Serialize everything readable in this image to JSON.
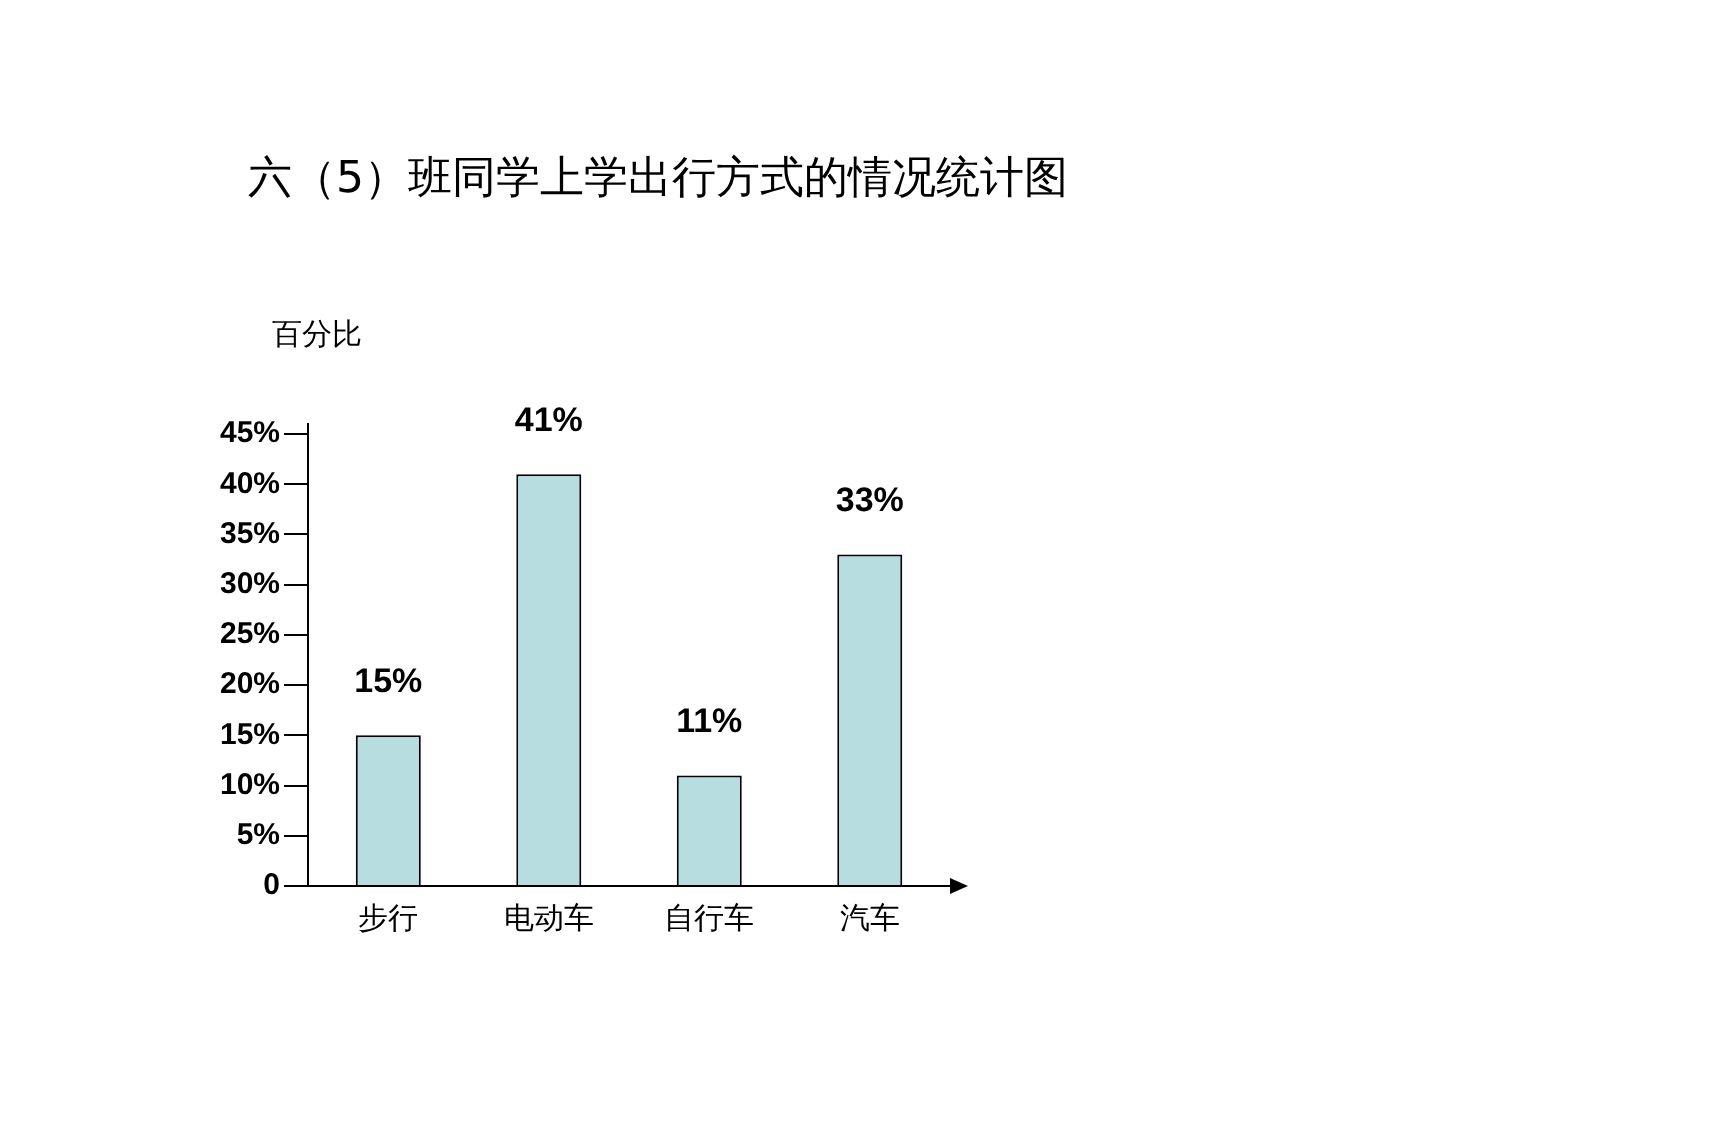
{
  "chart_data": {
    "type": "bar",
    "title": "六（5）班同学上学出行方式的情况统计图",
    "ylabel": "百分比",
    "categories": [
      "步行",
      "电动车",
      "自行车",
      "汽车"
    ],
    "values": [
      15,
      41,
      11,
      33
    ],
    "value_labels": [
      "15%",
      "41%",
      "11%",
      "33%"
    ],
    "color": "#b7dde0",
    "ylim": [
      0,
      46
    ],
    "yticks": [
      {
        "value": 0,
        "label": "0"
      },
      {
        "value": 5,
        "label": "5%"
      },
      {
        "value": 10,
        "label": "10%"
      },
      {
        "value": 15,
        "label": "15%"
      },
      {
        "value": 20,
        "label": "20%"
      },
      {
        "value": 25,
        "label": "25%"
      },
      {
        "value": 30,
        "label": "30%"
      },
      {
        "value": 35,
        "label": "35%"
      },
      {
        "value": 40,
        "label": "40%"
      },
      {
        "value": 45,
        "label": "45%"
      }
    ],
    "grid": false,
    "legend": false
  }
}
